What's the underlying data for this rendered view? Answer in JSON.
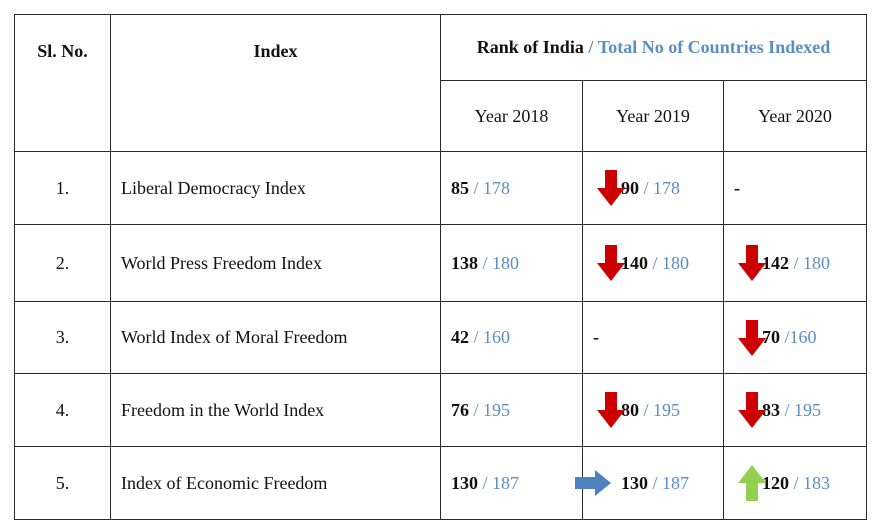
{
  "header": {
    "sl_no": "Sl. No.",
    "index": "Index",
    "rank_label": "Rank  of India",
    "slash": "/",
    "total_label": "Total No of Countries Indexed",
    "years": [
      "Year 2018",
      "Year 2019",
      "Year 2020"
    ]
  },
  "rows": [
    {
      "sl": "1.",
      "index": "Liberal Democracy Index",
      "cells": [
        {
          "rank": "85",
          "total": "/ 178",
          "arrow": "none"
        },
        {
          "rank": "90",
          "total": "/ 178",
          "arrow": "down"
        },
        {
          "text": "-"
        }
      ]
    },
    {
      "sl": "2.",
      "index": "World Press Freedom Index",
      "cells": [
        {
          "rank": "138",
          "total": "/ 180",
          "arrow": "none"
        },
        {
          "rank": "140",
          "total": "/ 180",
          "arrow": "down"
        },
        {
          "rank": "142",
          "total": "/ 180",
          "arrow": "down"
        }
      ]
    },
    {
      "sl": "3.",
      "index": "World Index of Moral Freedom",
      "cells": [
        {
          "rank": "42",
          "total": "/ 160",
          "arrow": "none"
        },
        {
          "text": "-"
        },
        {
          "rank": "70",
          "total": "/160",
          "arrow": "down"
        }
      ]
    },
    {
      "sl": "4.",
      "index": "Freedom in the World Index",
      "cells": [
        {
          "rank": "76",
          "total": "/ 195",
          "arrow": "none"
        },
        {
          "rank": "80",
          "total": "/ 195",
          "arrow": "down"
        },
        {
          "rank": "83",
          "total": "/ 195",
          "arrow": "down"
        }
      ]
    },
    {
      "sl": "5.",
      "index": "Index of Economic Freedom",
      "cells": [
        {
          "rank": "130",
          "total": "/ 187",
          "arrow": "none"
        },
        {
          "rank": "130",
          "total": "/ 187",
          "arrow": "right"
        },
        {
          "rank": "120",
          "total": "/ 183",
          "arrow": "up"
        }
      ]
    }
  ],
  "arrow_colors": {
    "down": "#cc0000",
    "right": "#4f81bd",
    "up": "#92d050"
  },
  "icons": {
    "down": "red-down-arrow-icon",
    "right": "blue-right-arrow-icon",
    "up": "green-up-arrow-icon"
  }
}
